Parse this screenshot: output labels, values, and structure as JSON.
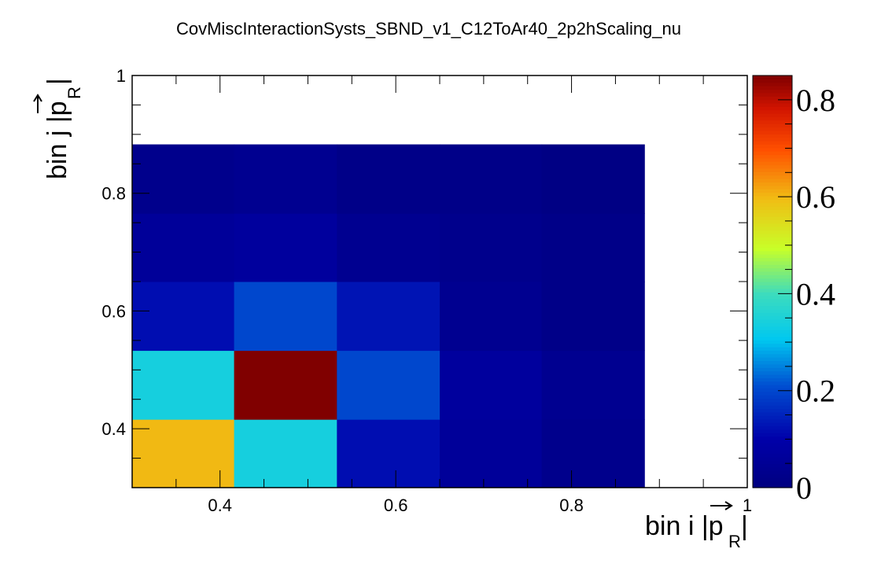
{
  "chart_data": {
    "type": "heatmap",
    "title": "CovMiscInteractionSysts_SBND_v1_C12ToAr40_2p2hScaling_nu",
    "xlabel": {
      "prefix": "bin i |",
      "symbol": "p",
      "subscript": "R",
      "suffix": "|"
    },
    "ylabel": {
      "prefix": "bin j |",
      "symbol": "p",
      "subscript": "R",
      "suffix": "|"
    },
    "xlim": [
      0.3,
      1.0
    ],
    "ylim": [
      0.3,
      1.0
    ],
    "x_ticks": [
      0.4,
      0.6,
      0.8,
      1
    ],
    "y_ticks": [
      0.4,
      0.6,
      0.8,
      1
    ],
    "x_tick_labels": [
      "0.4",
      "0.6",
      "0.8",
      "1"
    ],
    "y_tick_labels": [
      "0.4",
      "0.6",
      "0.8",
      "1"
    ],
    "bin_edges": [
      0.3,
      0.416,
      0.533,
      0.65,
      0.766,
      0.883
    ],
    "colorbar": {
      "min": 0,
      "max": 0.85,
      "ticks": [
        0,
        0.2,
        0.4,
        0.6,
        0.8
      ],
      "tick_labels": [
        "0",
        "0.2",
        "0.4",
        "0.6",
        "0.8"
      ]
    },
    "values": [
      [
        0.6,
        0.34,
        0.12,
        0.06,
        0.03
      ],
      [
        0.34,
        0.85,
        0.2,
        0.07,
        0.04
      ],
      [
        0.12,
        0.2,
        0.13,
        0.04,
        0.02
      ],
      [
        0.06,
        0.07,
        0.04,
        0.03,
        0.02
      ],
      [
        0.03,
        0.04,
        0.02,
        0.02,
        0.01
      ]
    ],
    "grid": false,
    "legend": "colorbar-right"
  }
}
